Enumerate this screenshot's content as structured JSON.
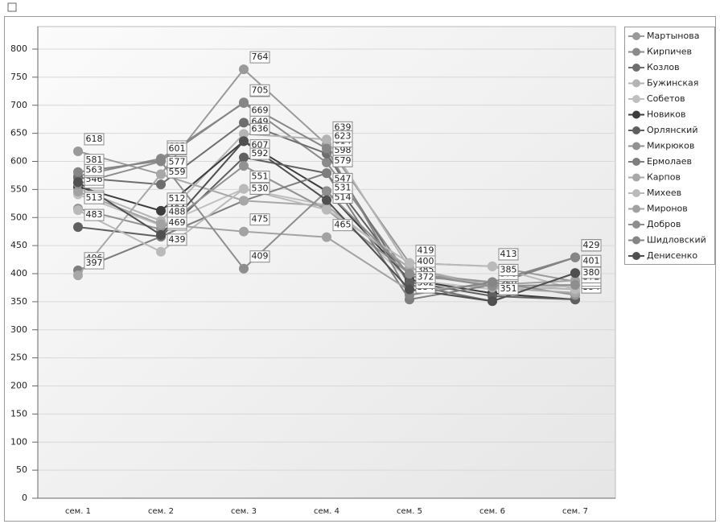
{
  "chart_data": {
    "type": "line",
    "categories": [
      "сем. 1",
      "сем. 2",
      "сем. 3",
      "сем. 4",
      "сем. 5",
      "сем. 6",
      "сем. 7"
    ],
    "ylim": [
      0,
      800
    ],
    "yticks": [
      0,
      50,
      100,
      150,
      200,
      250,
      300,
      350,
      400,
      450,
      500,
      550,
      600,
      650,
      700,
      750,
      800
    ],
    "grid": true,
    "legend": "right",
    "series": [
      {
        "name": "Мартынова",
        "color": "#9a9a9a",
        "values": [
          618,
          577,
          764,
          630,
          419,
          413,
          386
        ]
      },
      {
        "name": "Кирпичев",
        "color": "#8a8a8a",
        "values": [
          574,
          605,
          704,
          598,
          395,
          385,
          429
        ]
      },
      {
        "name": "Козлов",
        "color": "#6e6e6e",
        "values": [
          571,
          559,
          669,
          614,
          380,
          351,
          401
        ]
      },
      {
        "name": "Бужинская",
        "color": "#b4b4b4",
        "values": [
          552,
          494,
          649,
          639,
          410,
          378,
          372
        ]
      },
      {
        "name": "Собетов",
        "color": "#c0c0c0",
        "values": [
          541,
          486,
          551,
          522,
          389,
          372,
          378
        ]
      },
      {
        "name": "Новиков",
        "color": "#3c3c3c",
        "values": [
          555,
          512,
          636,
          547,
          389,
          365,
          354
        ]
      },
      {
        "name": "Орлянский",
        "color": "#606060",
        "values": [
          483,
          466,
          607,
          579,
          385,
          360,
          354
        ]
      },
      {
        "name": "Микрюков",
        "color": "#929292",
        "values": [
          516,
          479,
          592,
          514,
          400,
          385,
          362
        ]
      },
      {
        "name": "Ермолаев",
        "color": "#7e7e7e",
        "values": [
          406,
          466,
          530,
          579,
          354,
          380,
          429
        ]
      },
      {
        "name": "Карпов",
        "color": "#a8a8a8",
        "values": [
          397,
          577,
          530,
          521,
          410,
          375,
          366
        ]
      },
      {
        "name": "Михеев",
        "color": "#bababa",
        "values": [
          513,
          439,
          551,
          514,
          419,
          413,
          372
        ]
      },
      {
        "name": "Миронов",
        "color": "#a2a2a2",
        "values": [
          546,
          488,
          475,
          465,
          370,
          380,
          388
        ]
      },
      {
        "name": "Добров",
        "color": "#8e8e8e",
        "values": [
          560,
          600,
          409,
          547,
          400,
          378,
          380
        ]
      },
      {
        "name": "Шидловский",
        "color": "#868686",
        "values": [
          581,
          601,
          705,
          623,
          362,
          385,
          429
        ]
      },
      {
        "name": "Денисенко",
        "color": "#505050",
        "values": [
          563,
          469,
          636,
          531,
          372,
          351,
          401
        ]
      }
    ]
  }
}
